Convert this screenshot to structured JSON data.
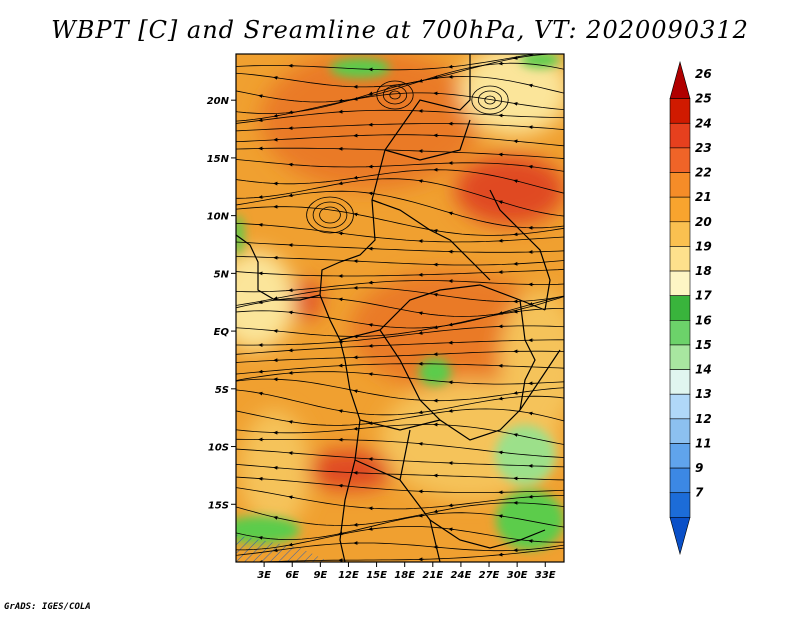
{
  "title": "WBPT [C] and Sreamline at 700hPa, VT: 2020090312",
  "footer": "GrADS: IGES/COLA",
  "map": {
    "lon_range": [
      0,
      35
    ],
    "lat_range": [
      -20,
      24
    ],
    "lat_ticks": [
      {
        "value": 20,
        "label": "20N"
      },
      {
        "value": 15,
        "label": "15N"
      },
      {
        "value": 10,
        "label": "10N"
      },
      {
        "value": 5,
        "label": "5N"
      },
      {
        "value": 0,
        "label": "EQ"
      },
      {
        "value": -5,
        "label": "5S"
      },
      {
        "value": -10,
        "label": "10S"
      },
      {
        "value": -15,
        "label": "15S"
      }
    ],
    "lon_ticks": [
      {
        "value": 3,
        "label": "3E"
      },
      {
        "value": 6,
        "label": "6E"
      },
      {
        "value": 9,
        "label": "9E"
      },
      {
        "value": 12,
        "label": "12E"
      },
      {
        "value": 15,
        "label": "15E"
      },
      {
        "value": 18,
        "label": "18E"
      },
      {
        "value": 21,
        "label": "21E"
      },
      {
        "value": 24,
        "label": "24E"
      },
      {
        "value": 27,
        "label": "27E"
      },
      {
        "value": 30,
        "label": "30E"
      },
      {
        "value": 33,
        "label": "33E"
      }
    ],
    "colors": {
      "base": "#f0a030",
      "warm": "#ea7a28",
      "hot": "#e04a20",
      "mild": "#f5c35a",
      "cool": "#fbe59a",
      "green_light": "#9ce08a",
      "green": "#5ccc4c",
      "streamline": "#000000"
    }
  },
  "colorbar": {
    "levels": [
      "26",
      "25",
      "24",
      "23",
      "22",
      "21",
      "20",
      "19",
      "18",
      "17",
      "16",
      "15",
      "14",
      "13",
      "12",
      "11",
      "9",
      "7"
    ],
    "colors": [
      "#b00000",
      "#d01a00",
      "#e6401e",
      "#f06428",
      "#f58c28",
      "#f8a42e",
      "#fac050",
      "#fde08c",
      "#fdf6c4",
      "#39b43c",
      "#6cd26a",
      "#a8e6a0",
      "#e0f6f0",
      "#b0d8f8",
      "#8cc0f0",
      "#60a4ec",
      "#3c88e4",
      "#1c6cd8",
      "#0a50c8"
    ]
  }
}
